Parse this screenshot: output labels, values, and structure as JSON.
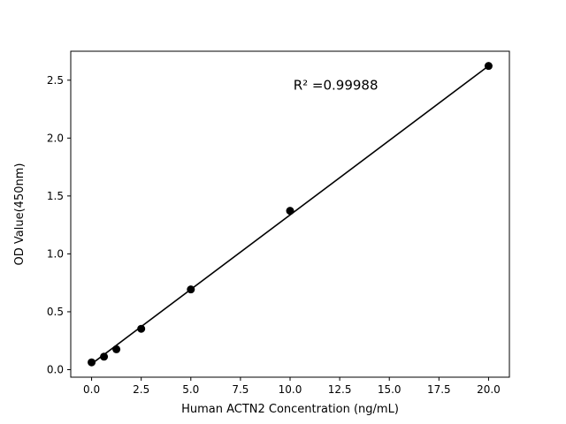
{
  "chart_data": {
    "type": "scatter",
    "title": "",
    "xlabel": "Human ACTN2 Concentration (ng/mL)",
    "ylabel": "OD Value(450nm)",
    "annotation": {
      "text": "R² =0.99988",
      "x": 12.3,
      "y": 2.42
    },
    "xlim": [
      -1.05,
      21.05
    ],
    "ylim": [
      -0.065,
      2.75
    ],
    "xticks": [
      0.0,
      2.5,
      5.0,
      7.5,
      10.0,
      12.5,
      15.0,
      17.5,
      20.0
    ],
    "yticks": [
      0.0,
      0.5,
      1.0,
      1.5,
      2.0,
      2.5
    ],
    "grid": false,
    "legend": "none",
    "points": [
      {
        "x": 0,
        "y": 0.063
      },
      {
        "x": 0.625,
        "y": 0.112
      },
      {
        "x": 1.25,
        "y": 0.176
      },
      {
        "x": 2.5,
        "y": 0.353
      },
      {
        "x": 5,
        "y": 0.693
      },
      {
        "x": 10,
        "y": 1.372
      },
      {
        "x": 20,
        "y": 2.623
      }
    ],
    "fit_line": {
      "x1": 0,
      "y1": 0.05,
      "x2": 20,
      "y2": 2.623
    },
    "colors": {
      "line": "#000000",
      "marker": "#000000",
      "axis": "#000000",
      "background": "#ffffff",
      "text": "#000000"
    }
  }
}
